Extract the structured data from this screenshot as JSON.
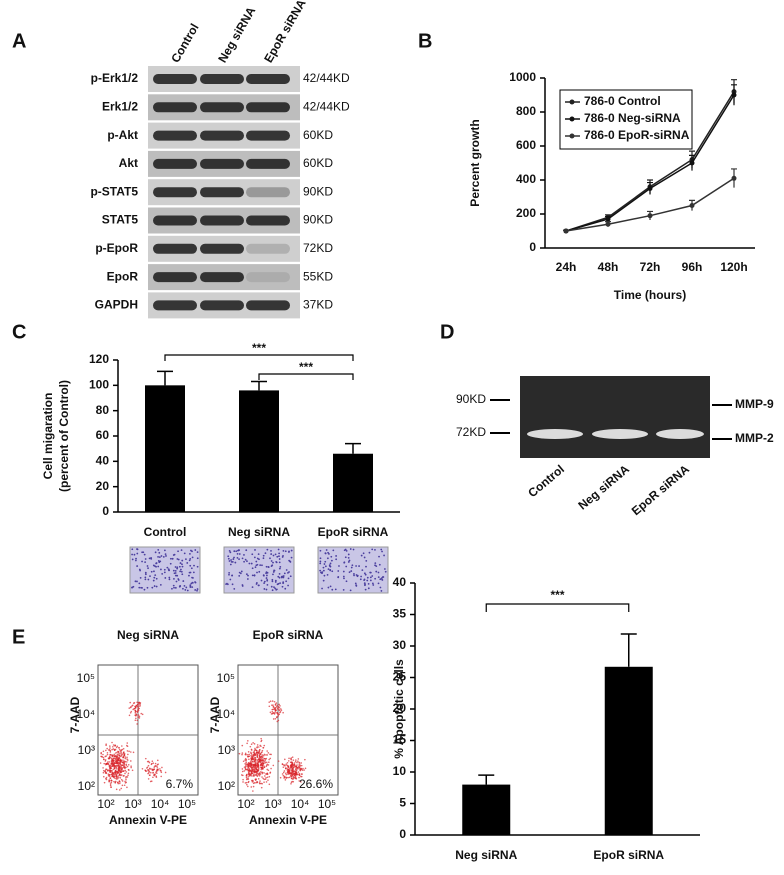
{
  "panel_labels": [
    "A",
    "B",
    "C",
    "D",
    "E"
  ],
  "blot": {
    "lanes": [
      "Control",
      "Neg siRNA",
      "EpoR siRNA"
    ],
    "rows": [
      {
        "protein": "p-Erk1/2",
        "size": "42/44KD"
      },
      {
        "protein": "Erk1/2",
        "size": "42/44KD"
      },
      {
        "protein": "p-Akt",
        "size": "60KD"
      },
      {
        "protein": "Akt",
        "size": "60KD"
      },
      {
        "protein": "p-STAT5",
        "size": "90KD"
      },
      {
        "protein": "STAT5",
        "size": "90KD"
      },
      {
        "protein": "p-EpoR",
        "size": "72KD"
      },
      {
        "protein": "EpoR",
        "size": "55KD"
      },
      {
        "protein": "GAPDH",
        "size": "37KD"
      }
    ]
  },
  "zymogram": {
    "markers": [
      "90KD",
      "72KD"
    ],
    "bands": [
      "MMP-9",
      "MMP-2"
    ],
    "lanes": [
      "Control",
      "Neg siRNA",
      "EpoR siRNA"
    ]
  },
  "flow": [
    {
      "title": "Neg siRNA",
      "y_label": "7-AAD",
      "x_label": "Annexin V-PE",
      "percent": "6.7%",
      "xticks": [
        "10²",
        "10³",
        "10⁴",
        "10⁵"
      ],
      "yticks": [
        "10²",
        "10³",
        "10⁴",
        "10⁵"
      ]
    },
    {
      "title": "EpoR siRNA",
      "y_label": "7-AAD",
      "x_label": "Annexin V-PE",
      "percent": "26.6%",
      "xticks": [
        "10²",
        "10³",
        "10⁴",
        "10⁵"
      ],
      "yticks": [
        "10²",
        "10³",
        "10⁴",
        "10⁵"
      ]
    }
  ],
  "chart_data": [
    {
      "type": "line",
      "x_label": "Time (hours)",
      "y_label": "Percent growth",
      "categories": [
        "24h",
        "48h",
        "72h",
        "96h",
        "120h"
      ],
      "series": [
        {
          "name": "786-0 Control",
          "color": "#222222",
          "values": [
            100,
            180,
            360,
            520,
            920
          ],
          "errors": [
            5,
            15,
            40,
            50,
            70
          ]
        },
        {
          "name": "786-0 Neg-siRNA",
          "color": "#111111",
          "values": [
            100,
            170,
            350,
            500,
            900
          ],
          "errors": [
            5,
            15,
            35,
            45,
            60
          ]
        },
        {
          "name": "786-0 EpoR-siRNA",
          "color": "#333333",
          "values": [
            100,
            140,
            190,
            250,
            410
          ],
          "errors": [
            5,
            15,
            25,
            30,
            55
          ]
        }
      ],
      "ylim": [
        0,
        1000
      ],
      "yticks": [
        0,
        200,
        400,
        600,
        800,
        1000
      ],
      "legend": "top-left"
    },
    {
      "type": "bar",
      "y_label": [
        "Cell migaration",
        "(percent of Control)"
      ],
      "categories": [
        "Control",
        "Neg siRNA",
        "EpoR siRNA"
      ],
      "values": [
        100,
        96,
        46
      ],
      "errors": [
        11,
        7,
        8
      ],
      "color": "#000000",
      "ylim": [
        0,
        120
      ],
      "yticks": [
        0,
        20,
        40,
        60,
        80,
        100,
        120
      ],
      "annotations": [
        "***",
        "***"
      ]
    },
    {
      "type": "bar",
      "y_label": "% Apoptotic cells",
      "categories": [
        "Neg siRNA",
        "EpoR siRNA"
      ],
      "values": [
        8,
        26.7
      ],
      "errors": [
        1.5,
        5.2
      ],
      "color": "#000000",
      "ylim": [
        0,
        40
      ],
      "yticks": [
        0,
        5,
        10,
        15,
        20,
        25,
        30,
        35,
        40
      ],
      "annotations": [
        "***"
      ]
    }
  ]
}
